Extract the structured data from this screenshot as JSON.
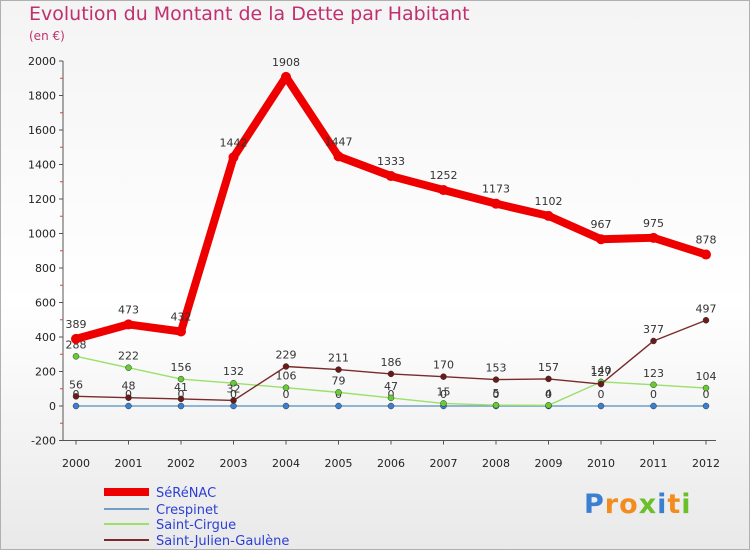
{
  "title": "Evolution du Montant de la Dette par Habitant",
  "subtitle": "(en €)",
  "chart_data": {
    "type": "line",
    "x": [
      "2000",
      "2001",
      "2002",
      "2003",
      "2004",
      "2005",
      "2006",
      "2007",
      "2008",
      "2009",
      "2010",
      "2011",
      "2012"
    ],
    "ylim": [
      -200,
      2000
    ],
    "yticks": [
      -200,
      0,
      200,
      400,
      600,
      800,
      1000,
      1200,
      1400,
      1600,
      1800,
      2000
    ],
    "grid": false,
    "legend_position": "bottom-left",
    "series": [
      {
        "name": "SéRéNAC",
        "color": "#ee0000",
        "values": [
          389,
          473,
          432,
          1442,
          1908,
          1447,
          1333,
          1252,
          1173,
          1102,
          967,
          975,
          878
        ]
      },
      {
        "name": "Crespinet",
        "color": "#6f9fc7",
        "marker": "#3a7fd0",
        "values": [
          0,
          0,
          0,
          0,
          0,
          0,
          0,
          0,
          0,
          0,
          0,
          0,
          0
        ]
      },
      {
        "name": "Saint-Cirgue",
        "color": "#9be06a",
        "marker": "#66cc33",
        "values": [
          288,
          222,
          156,
          132,
          106,
          79,
          47,
          15,
          5,
          4,
          140,
          123,
          104
        ]
      },
      {
        "name": "Saint-Julien-Gaulène",
        "color": "#7a2a2a",
        "marker": "#6b1a1a",
        "values": [
          56,
          48,
          41,
          32,
          229,
          211,
          186,
          170,
          153,
          157,
          127,
          377,
          497
        ]
      }
    ]
  },
  "logo": {
    "text": "Proxiti",
    "letters": [
      "P",
      "r",
      "o",
      "x",
      "i",
      "t",
      "i"
    ],
    "colors": [
      "#3a7fd0",
      "#f28c1e",
      "#f28c1e",
      "#6bbf2a",
      "#3a7fd0",
      "#f28c1e",
      "#6bbf2a"
    ]
  }
}
